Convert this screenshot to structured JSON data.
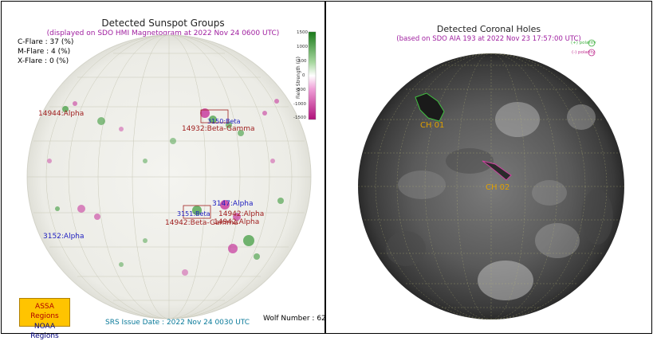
{
  "left": {
    "title": "Detected Sunspot Groups",
    "subtitle": "(displayed on SDO HMI Magnetogram at 2022 Nov 24 0600 UTC)",
    "stats": [
      {
        "label": "C-Flare : 37 (%)"
      },
      {
        "label": "M-Flare :  4 (%)"
      },
      {
        "label": "X-Flare :  0 (%)"
      }
    ],
    "colorbar": {
      "label": "Field Strength (G)",
      "ticks": [
        "1500",
        "1000",
        "500",
        "0",
        "-500",
        "-1000",
        "-1500"
      ]
    },
    "regions": [
      {
        "text": "14944:Alpha",
        "color": "#a02020"
      },
      {
        "text": "3150:Beta",
        "color": "#2020c0"
      },
      {
        "text": "14932:Beta-Gamma",
        "color": "#a02020"
      },
      {
        "text": "3147:Alpha",
        "color": "#2020c0"
      },
      {
        "text": "3151:Beta",
        "color": "#2020c0"
      },
      {
        "text": "14942:Alpha",
        "color": "#a02020"
      },
      {
        "text": "14942:Alpha",
        "color": "#a02020"
      },
      {
        "text": "14942:Beta-Gamma",
        "color": "#a02020"
      },
      {
        "text": "3152:Alpha",
        "color": "#2020c0"
      }
    ],
    "legend": {
      "assa": "ASSA Regions",
      "noaa": "NOAA Regions"
    },
    "srs": "SRS Issue Date : 2022 Nov 24 0030 UTC",
    "wolf": "Wolf Number : 62"
  },
  "right": {
    "title": "Detected Coronal Holes",
    "subtitle": "(based on SDO AIA 193 at 2022 Nov 23 17:57:00 UTC)",
    "legend": [
      {
        "label": "(+) polarity",
        "color": "#40b040"
      },
      {
        "label": "(-) polarity",
        "color": "#c03090"
      }
    ],
    "holes": [
      {
        "text": "CH 01"
      },
      {
        "text": "CH 02"
      }
    ]
  },
  "colors": {
    "positive": "#1a8a1a",
    "negative": "#c01890",
    "assa_label": "#a02020",
    "noaa_label": "#2020c0",
    "grid": "#b8b89a"
  }
}
